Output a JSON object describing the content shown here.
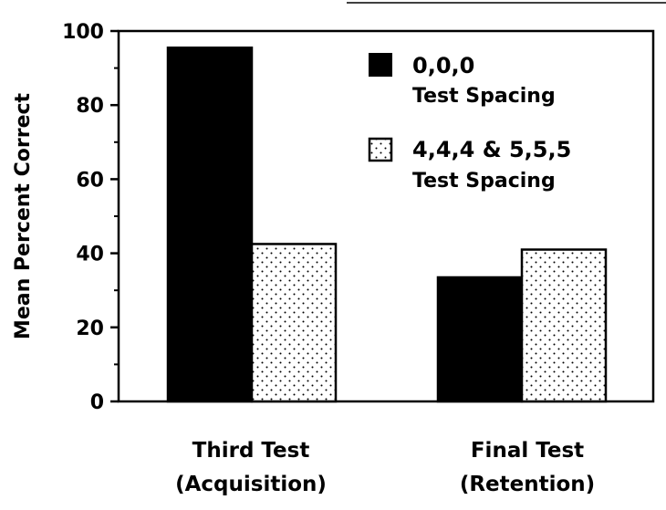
{
  "chart_data": {
    "type": "bar",
    "title": "",
    "ylabel": "Mean Percent Correct",
    "xlabel": "",
    "ylim": [
      0,
      100
    ],
    "yticks": [
      0,
      20,
      40,
      60,
      80,
      100
    ],
    "grid": false,
    "legend_position": "top-right",
    "categories": [
      {
        "line1": "Third Test",
        "line2": "(Acquisition)"
      },
      {
        "line1": "Final Test",
        "line2": "(Retention)"
      }
    ],
    "series": [
      {
        "name_line1": "0,0,0",
        "name_line2": "Test Spacing",
        "fill": "solid",
        "color": "#000000",
        "values": [
          95.5,
          33.5
        ]
      },
      {
        "name_line1": "4,4,4 & 5,5,5",
        "name_line2": "Test Spacing",
        "fill": "dotted",
        "color": "#000000",
        "values": [
          42.5,
          41
        ]
      }
    ]
  }
}
